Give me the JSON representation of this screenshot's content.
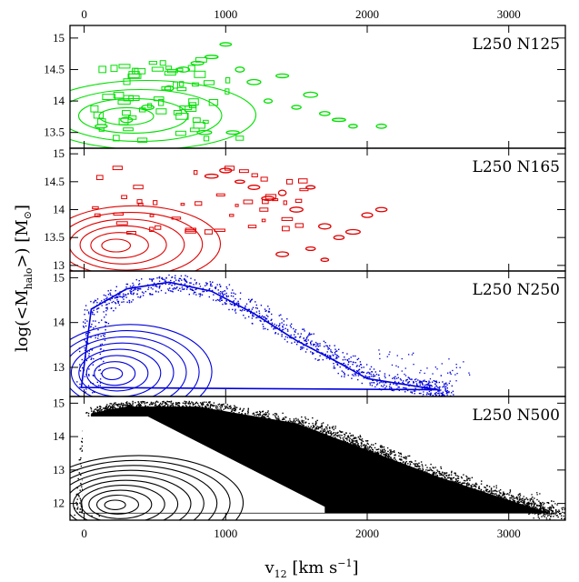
{
  "chart_data": {
    "type": "scatter",
    "xlabel": {
      "main": "v",
      "sub": "12",
      "units_pre": " [km s",
      "units_sup": "−1",
      "units_post": "]"
    },
    "ylabel": {
      "pre": "log(<M",
      "sub": "halo",
      "post": ">)  [M",
      "sym_sub": "⊙",
      "close": "]"
    },
    "xlim": [
      -100,
      3400
    ],
    "x_ticks": [
      0,
      1000,
      2000,
      3000
    ],
    "x_tick_labels": [
      "0",
      "1000",
      "2000",
      "3000"
    ],
    "top_axis_labels": [
      "0",
      "1000",
      "2000",
      "3000"
    ],
    "grid": false,
    "panels": [
      {
        "label": "L250  N125",
        "color": "#00e000",
        "ylim": [
          13.25,
          15.2
        ],
        "y_ticks": [
          13.5,
          14,
          14.5,
          15
        ],
        "y_tick_labels": [
          "13.5",
          "14",
          "14.5",
          "15"
        ],
        "cluster": {
          "x_center": 250,
          "y_center": 13.75,
          "contour_levels": 4
        },
        "points": [
          [
            120,
            13.6
          ],
          [
            300,
            13.7
          ],
          [
            450,
            13.9
          ],
          [
            600,
            14.2
          ],
          [
            700,
            14.5
          ],
          [
            800,
            14.6
          ],
          [
            900,
            14.7
          ],
          [
            1000,
            14.9
          ],
          [
            1100,
            14.5
          ],
          [
            1200,
            14.3
          ],
          [
            1300,
            14.0
          ],
          [
            1400,
            14.4
          ],
          [
            1500,
            13.9
          ],
          [
            1600,
            14.1
          ],
          [
            1700,
            13.8
          ],
          [
            1800,
            13.7
          ],
          [
            1900,
            13.6
          ],
          [
            2100,
            13.6
          ],
          [
            850,
            13.5
          ],
          [
            1050,
            13.5
          ]
        ]
      },
      {
        "label": "L250  N165",
        "color": "#e00000",
        "ylim": [
          12.9,
          15.1
        ],
        "y_ticks": [
          13,
          13.5,
          14,
          14.5,
          15
        ],
        "y_tick_labels": [
          "13",
          "13.5",
          "14",
          "14.5",
          "15"
        ],
        "cluster": {
          "x_center": 200,
          "y_center": 13.35,
          "contour_levels": 6
        },
        "points": [
          [
            900,
            14.6
          ],
          [
            1000,
            14.7
          ],
          [
            1100,
            14.5
          ],
          [
            1200,
            14.4
          ],
          [
            1300,
            14.2
          ],
          [
            1400,
            14.3
          ],
          [
            1500,
            14.0
          ],
          [
            1600,
            14.4
          ],
          [
            1700,
            13.7
          ],
          [
            1800,
            13.5
          ],
          [
            1900,
            13.6
          ],
          [
            2000,
            13.9
          ],
          [
            2100,
            14.0
          ],
          [
            1400,
            13.2
          ],
          [
            1600,
            13.3
          ],
          [
            1700,
            13.1
          ]
        ]
      },
      {
        "label": "L250  N250",
        "color": "#0000dd",
        "ylim": [
          12.35,
          15.15
        ],
        "y_ticks": [
          13,
          14,
          15
        ],
        "y_tick_labels": [
          "13",
          "14",
          "15"
        ],
        "cluster": {
          "x_center": 180,
          "y_center": 12.85,
          "contour_levels": 8
        },
        "envelope": [
          [
            -20,
            12.55
          ],
          [
            50,
            14.3
          ],
          [
            300,
            14.75
          ],
          [
            600,
            14.9
          ],
          [
            900,
            14.7
          ],
          [
            1200,
            14.2
          ],
          [
            1500,
            13.6
          ],
          [
            1800,
            13.1
          ],
          [
            2000,
            12.75
          ],
          [
            2400,
            12.55
          ],
          [
            2500,
            12.5
          ]
        ],
        "points": [
          [
            2200,
            13.2
          ],
          [
            2300,
            12.9
          ],
          [
            2500,
            12.8
          ],
          [
            2600,
            13.0
          ],
          [
            2400,
            12.5
          ]
        ]
      },
      {
        "label": "L250  N500",
        "color": "#000000",
        "ylim": [
          11.5,
          15.2
        ],
        "y_ticks": [
          12,
          13,
          14,
          15
        ],
        "y_tick_labels": [
          "12",
          "13",
          "14",
          "15"
        ],
        "cluster": {
          "x_center": 200,
          "y_center": 11.95,
          "contour_levels": 10
        },
        "envelope": [
          [
            -20,
            11.7
          ],
          [
            50,
            14.7
          ],
          [
            300,
            14.9
          ],
          [
            800,
            14.9
          ],
          [
            1500,
            14.4
          ],
          [
            2000,
            13.6
          ],
          [
            2500,
            12.8
          ],
          [
            3000,
            12.1
          ],
          [
            3300,
            11.7
          ]
        ],
        "points": [
          [
            3100,
            12.2
          ],
          [
            3200,
            11.9
          ],
          [
            3300,
            11.6
          ]
        ]
      }
    ]
  }
}
